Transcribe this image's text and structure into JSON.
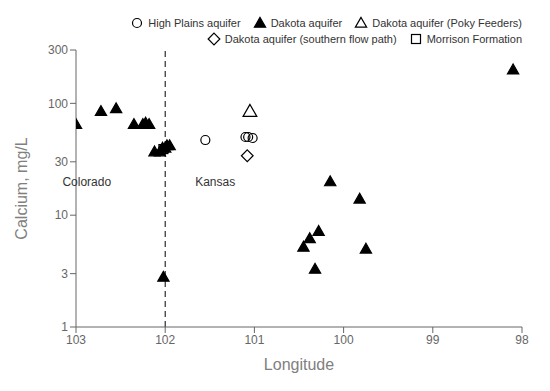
{
  "chart_data": {
    "type": "scatter",
    "title": "",
    "xlabel": "Longitude",
    "ylabel": "Calcium, mg/L",
    "xlim": [
      103,
      98
    ],
    "ylim": [
      1,
      300
    ],
    "xticks": [
      103,
      102,
      101,
      100,
      99,
      98
    ],
    "yticks": [
      1,
      3,
      10,
      30,
      100,
      300
    ],
    "log": "y",
    "legend": "upper right",
    "series": [
      {
        "name": "High Plains aquifer",
        "color": "#000000",
        "marker": "open_circle",
        "x": [
          101.55,
          101.1,
          101.07,
          101.02
        ],
        "values": [
          47,
          50,
          50,
          49
        ]
      },
      {
        "name": "Dakota aquifer",
        "color": "#000000",
        "marker": "filled_triangle",
        "x": [
          103.0,
          102.72,
          102.55,
          102.35,
          102.25,
          102.22,
          102.18,
          102.12,
          102.06,
          102.03,
          102.0,
          101.98,
          101.95,
          102.02,
          100.45,
          100.38,
          100.32,
          100.28,
          100.15,
          99.82,
          99.75,
          98.1
        ],
        "values": [
          65,
          85,
          90,
          65,
          65,
          67,
          65,
          37,
          37,
          40,
          40,
          42,
          42,
          2.8,
          5.2,
          6.2,
          3.3,
          7.2,
          20,
          14,
          5,
          200
        ]
      },
      {
        "name": "Dakota aquifer (Poky Feeders)",
        "color": "#000000",
        "marker": "open_triangle",
        "x": [
          101.05
        ],
        "values": [
          85
        ]
      },
      {
        "name": "Dakota aquifer (southern flow path)",
        "color": "#000000",
        "marker": "open_diamond",
        "x": [
          101.08
        ],
        "values": [
          34
        ]
      },
      {
        "name": "Morrison Formation",
        "color": "#000000",
        "marker": "open_square",
        "x": [
          102.02
        ],
        "values": [
          39
        ]
      }
    ],
    "reference_lines": [
      {
        "x": 102,
        "line_style": "dashed",
        "color": "#000000"
      }
    ],
    "annotations": [
      {
        "text": "Colorado",
        "x": 102.55,
        "y": 20
      },
      {
        "text": "Kansas",
        "x": 101.72,
        "y": 20
      }
    ]
  }
}
